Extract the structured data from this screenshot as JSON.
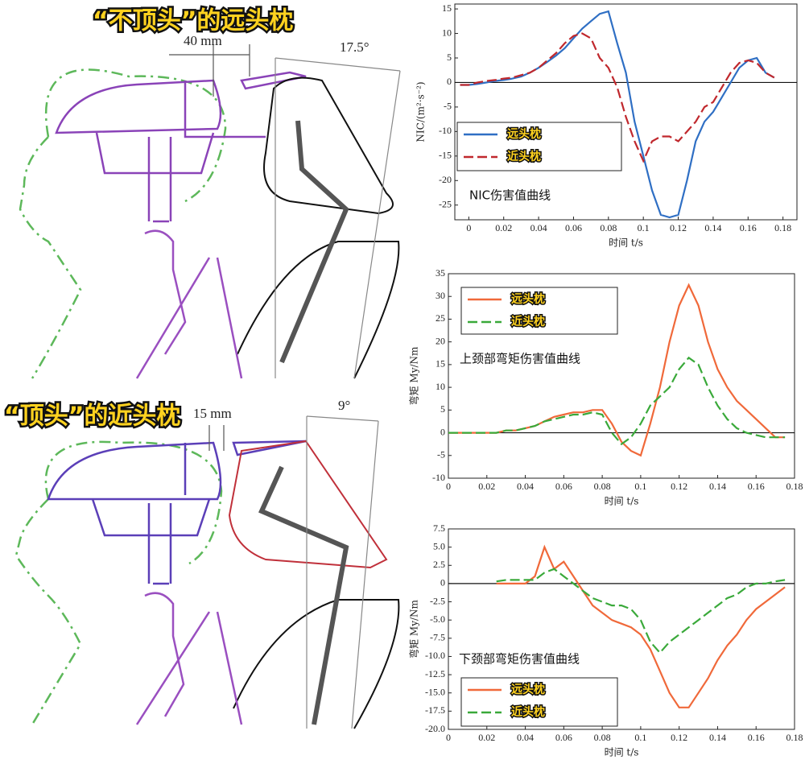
{
  "diagram": {
    "top_title": "“不顶头”的远头枕",
    "top_gap": "40 mm",
    "top_angle": "17.5°",
    "bottom_title": "“顶头”的近头枕",
    "bottom_gap": "15 mm",
    "bottom_angle": "9°"
  },
  "chart_data": [
    {
      "type": "line",
      "annotation": "NIC伤害值曲线",
      "xlabel": "时间 t/s",
      "ylabel": "NIC/(m²·s⁻²)",
      "xlim": [
        -0.008,
        0.188
      ],
      "ylim": [
        -28,
        16
      ],
      "xticks": [
        0,
        0.02,
        0.04,
        0.06,
        0.08,
        0.1,
        0.12,
        0.14,
        0.16,
        0.18
      ],
      "yticks": [
        15,
        10,
        5,
        0,
        -5,
        -10,
        -15,
        -20,
        -25
      ],
      "zero_line": true,
      "x": [
        -0.005,
        0,
        0.005,
        0.01,
        0.015,
        0.02,
        0.025,
        0.03,
        0.035,
        0.04,
        0.045,
        0.05,
        0.055,
        0.06,
        0.065,
        0.07,
        0.075,
        0.08,
        0.085,
        0.09,
        0.095,
        0.1,
        0.105,
        0.11,
        0.115,
        0.12,
        0.125,
        0.13,
        0.135,
        0.14,
        0.145,
        0.15,
        0.155,
        0.16,
        0.165,
        0.17,
        0.175
      ],
      "series": [
        {
          "name": "远头枕",
          "color": "#2f6fc4",
          "dashed": false,
          "values": [
            -0.5,
            -0.5,
            -0.3,
            0,
            0.3,
            0.5,
            0.8,
            1.2,
            2,
            3,
            4.2,
            5.5,
            7,
            9,
            11,
            12.5,
            14,
            14.5,
            8,
            2,
            -8,
            -15,
            -22,
            -27,
            -27.5,
            -27,
            -20,
            -12,
            -8,
            -6,
            -3,
            0,
            3,
            4.5,
            5,
            2,
            1
          ]
        },
        {
          "name": "近头枕",
          "color": "#c0282d",
          "dashed": true,
          "values": [
            -0.5,
            -0.5,
            0,
            0.3,
            0.5,
            0.8,
            1,
            1.5,
            2,
            3,
            4.5,
            6,
            8,
            9.5,
            10,
            9,
            5,
            3,
            -1,
            -7,
            -12,
            -16,
            -12,
            -11,
            -11,
            -12,
            -10,
            -8,
            -5,
            -4,
            -1,
            2,
            4,
            4.5,
            4,
            2,
            1
          ]
        }
      ]
    },
    {
      "type": "line",
      "annotation": "上颈部弯矩伤害值曲线",
      "xlabel": "时间 t/s",
      "ylabel": "弯矩 My/Nm",
      "xlim": [
        0,
        0.18
      ],
      "ylim": [
        -10,
        35
      ],
      "xticks": [
        0,
        0.02,
        0.04,
        0.06,
        0.08,
        0.1,
        0.12,
        0.14,
        0.16,
        0.18
      ],
      "yticks": [
        35,
        30,
        25,
        20,
        15,
        10,
        5,
        0,
        -5,
        -10
      ],
      "zero_line": true,
      "x": [
        0,
        0.005,
        0.01,
        0.015,
        0.02,
        0.025,
        0.03,
        0.035,
        0.04,
        0.045,
        0.05,
        0.055,
        0.06,
        0.065,
        0.07,
        0.075,
        0.08,
        0.085,
        0.09,
        0.095,
        0.1,
        0.105,
        0.11,
        0.115,
        0.12,
        0.125,
        0.13,
        0.135,
        0.14,
        0.145,
        0.15,
        0.155,
        0.16,
        0.165,
        0.17,
        0.175
      ],
      "series": [
        {
          "name": "远头枕",
          "color": "#f0693a",
          "dashed": false,
          "values": [
            0,
            0,
            0,
            0,
            0,
            0,
            0.5,
            0.5,
            1,
            1.5,
            2.5,
            3.5,
            4,
            4.5,
            4.5,
            5,
            5,
            2,
            -2,
            -4,
            -5,
            2,
            10,
            20,
            28,
            32.5,
            28,
            20,
            14,
            10,
            7,
            5,
            3,
            1,
            -1,
            -1
          ]
        },
        {
          "name": "近头枕",
          "color": "#3aa93a",
          "dashed": true,
          "values": [
            0,
            0,
            0,
            0,
            0,
            0,
            0.5,
            0.5,
            1,
            1.5,
            2.5,
            3,
            3.5,
            4,
            4,
            4.5,
            4,
            0,
            -2.5,
            -1,
            2,
            6,
            8,
            10,
            14,
            16.5,
            15,
            10,
            6,
            3,
            1,
            0,
            -0.5,
            -1,
            -1,
            -1
          ]
        }
      ]
    },
    {
      "type": "line",
      "annotation": "下颈部弯矩伤害值曲线",
      "xlabel": "时间 t/s",
      "ylabel": "弯矩 My/Nm",
      "xlim": [
        0,
        0.18
      ],
      "ylim": [
        -20,
        7.5
      ],
      "xticks": [
        0,
        0.02,
        0.04,
        0.06,
        0.08,
        0.1,
        0.12,
        0.14,
        0.16,
        0.18
      ],
      "yticks": [
        7.5,
        {
          "value": 5,
          "label": "5.0"
        },
        2.5,
        0,
        -2.5,
        {
          "value": -5,
          "label": "-5.0"
        },
        -7.5,
        {
          "value": -10,
          "label": "-10.0"
        },
        -12.5,
        {
          "value": -15,
          "label": "-15.0"
        },
        -17.5,
        {
          "value": -20,
          "label": "-20.0"
        }
      ],
      "zero_line": true,
      "x": [
        0.025,
        0.03,
        0.035,
        0.04,
        0.045,
        0.05,
        0.055,
        0.06,
        0.065,
        0.07,
        0.075,
        0.08,
        0.085,
        0.09,
        0.095,
        0.1,
        0.105,
        0.11,
        0.115,
        0.12,
        0.125,
        0.13,
        0.135,
        0.14,
        0.145,
        0.15,
        0.155,
        0.16,
        0.165,
        0.17,
        0.175
      ],
      "series": [
        {
          "name": "远头枕",
          "color": "#f0693a",
          "dashed": false,
          "values": [
            0,
            0,
            0,
            0,
            1,
            5,
            2,
            3,
            1,
            -1,
            -3,
            -4,
            -5,
            -5.5,
            -6,
            -7,
            -9,
            -12,
            -15,
            -17,
            -17,
            -15,
            -13,
            -10.5,
            -8.5,
            -7,
            -5,
            -3.5,
            -2.5,
            -1.5,
            -0.5
          ]
        },
        {
          "name": "近头枕",
          "color": "#3aa93a",
          "dashed": true,
          "values": [
            0.3,
            0.5,
            0.5,
            0.5,
            0.5,
            1.5,
            2,
            1,
            0,
            -1,
            -2,
            -2.5,
            -3,
            -3,
            -3.5,
            -5,
            -8,
            -9.5,
            -8,
            -7,
            -6,
            -5,
            -4,
            -3,
            -2,
            -1.5,
            -0.5,
            0,
            0,
            0.3,
            0.5
          ]
        }
      ]
    }
  ]
}
